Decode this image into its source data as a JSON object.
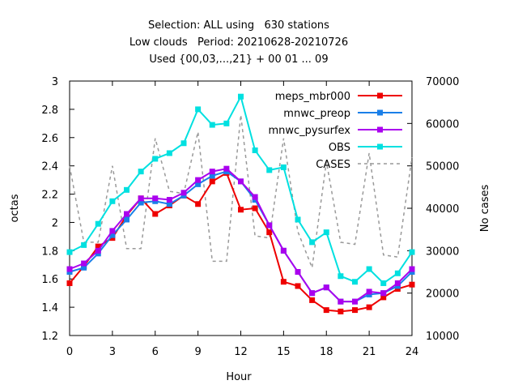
{
  "chart_data": {
    "type": "line",
    "title_lines": [
      "Selection: ALL using   630 stations",
      "Low clouds   Period: 20210628-20210726",
      "Used {00,03,...,21} + 00 01 ... 09"
    ],
    "xlabel": "Hour",
    "ylabel": "octas",
    "y2label": "No cases",
    "xlim": [
      0,
      24
    ],
    "ylim": [
      1.2,
      3.0
    ],
    "y2lim": [
      10000,
      70000
    ],
    "xticks": [
      "0",
      "3",
      "6",
      "9",
      "12",
      "15",
      "18",
      "21",
      "24"
    ],
    "yticks": [
      "1.2",
      "1.4",
      "1.6",
      "1.8",
      "2",
      "2.2",
      "2.4",
      "2.6",
      "2.8",
      "3"
    ],
    "y2ticks": [
      "10000",
      "20000",
      "30000",
      "40000",
      "50000",
      "60000",
      "70000"
    ],
    "legend_position": "top-right",
    "grid": false,
    "x": [
      0,
      1,
      2,
      3,
      4,
      5,
      6,
      7,
      8,
      9,
      10,
      11,
      12,
      13,
      14,
      15,
      16,
      17,
      18,
      19,
      20,
      21,
      22,
      23,
      24
    ],
    "series": [
      {
        "name": "meps_mbr000",
        "color": "#ee0000",
        "marker": "square",
        "axis": "y",
        "values": [
          1.57,
          1.69,
          1.83,
          1.89,
          2.05,
          2.17,
          2.06,
          2.12,
          2.19,
          2.13,
          2.29,
          2.35,
          2.09,
          2.1,
          1.93,
          1.58,
          1.55,
          1.45,
          1.38,
          1.37,
          1.38,
          1.4,
          1.47,
          1.53,
          1.56
        ]
      },
      {
        "name": "mnwc_preop",
        "color": "#1a7fe8",
        "marker": "square",
        "axis": "y",
        "values": [
          1.65,
          1.68,
          1.78,
          1.91,
          2.02,
          2.14,
          2.15,
          2.13,
          2.19,
          2.27,
          2.33,
          2.36,
          2.29,
          2.16,
          1.98,
          1.8,
          1.65,
          1.5,
          1.54,
          1.44,
          1.44,
          1.49,
          1.5,
          1.55,
          1.65
        ]
      },
      {
        "name": "mnwc_pysurfex",
        "color": "#aa00ee",
        "marker": "square",
        "axis": "y",
        "values": [
          1.67,
          1.71,
          1.8,
          1.94,
          2.06,
          2.17,
          2.17,
          2.16,
          2.21,
          2.3,
          2.36,
          2.38,
          2.29,
          2.18,
          1.98,
          1.8,
          1.65,
          1.5,
          1.54,
          1.44,
          1.44,
          1.51,
          1.5,
          1.57,
          1.67
        ]
      },
      {
        "name": "OBS",
        "color": "#00e0e0",
        "marker": "square",
        "axis": "y",
        "values": [
          1.79,
          1.84,
          1.99,
          2.15,
          2.23,
          2.36,
          2.45,
          2.49,
          2.56,
          2.8,
          2.69,
          2.7,
          2.89,
          2.51,
          2.37,
          2.39,
          2.02,
          1.86,
          1.93,
          1.62,
          1.58,
          1.67,
          1.57,
          1.64,
          1.79
        ]
      },
      {
        "name": "CASES",
        "color": "#999999",
        "marker": "none",
        "dashed": true,
        "axis": "y2",
        "values": [
          50000,
          32000,
          32000,
          50000,
          30500,
          30500,
          56500,
          44000,
          43500,
          58000,
          27500,
          27500,
          62000,
          33500,
          33000,
          56500,
          34500,
          26000,
          51000,
          32000,
          31500,
          53000,
          29000,
          28500,
          52000
        ]
      }
    ]
  }
}
